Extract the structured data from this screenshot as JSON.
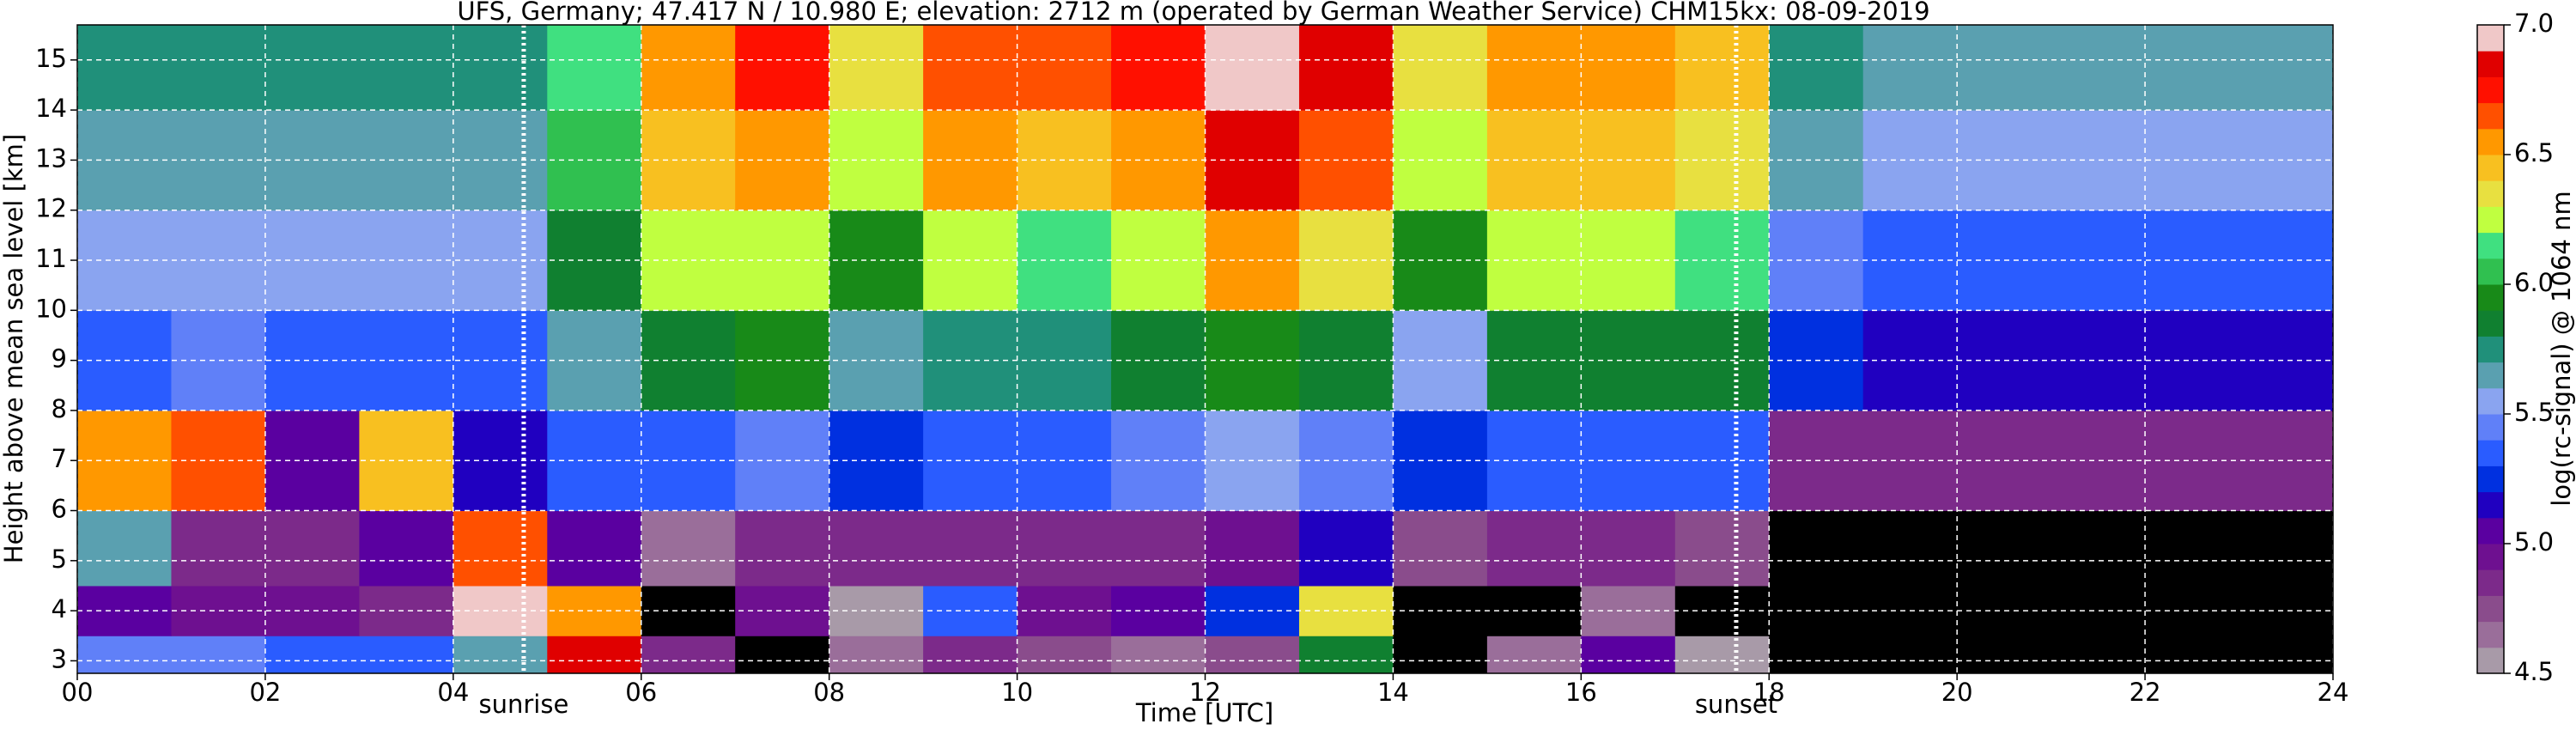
{
  "chart_data": {
    "type": "heatmap",
    "title": "UFS, Germany; 47.417 N / 10.980 E; elevation: 2712 m  (operated by German Weather Service)     CHM15kx: 08-09-2019",
    "xlabel": "Time [UTC]",
    "ylabel": "Height above mean sea level [km]",
    "colorbar_label": "log(rc-signal) @ 1064 nm",
    "xlim": [
      0,
      24
    ],
    "ylim": [
      2.75,
      15.7
    ],
    "xticks": [
      {
        "value": 0,
        "label": "00"
      },
      {
        "value": 2,
        "label": "02"
      },
      {
        "value": 4,
        "label": "04"
      },
      {
        "value": 6,
        "label": "06"
      },
      {
        "value": 8,
        "label": "08"
      },
      10,
      12,
      14,
      16,
      18,
      20,
      22,
      24
    ],
    "yticks": [
      3,
      4,
      5,
      6,
      7,
      8,
      9,
      10,
      11,
      12,
      13,
      14,
      15
    ],
    "grid": true,
    "xbins": [
      0,
      1,
      2,
      3,
      4,
      5,
      6,
      7,
      8,
      9,
      10,
      11,
      12,
      13,
      14,
      15,
      16,
      17,
      18,
      19,
      20,
      21,
      22,
      23,
      24
    ],
    "ybins": [
      2.75,
      3.5,
      4.5,
      6,
      8,
      10,
      12,
      14,
      15.7
    ],
    "z": [
      [
        5.4,
        5.4,
        5.3,
        5.3,
        5.6,
        6.8,
        4.8,
        4.4,
        4.6,
        4.8,
        4.7,
        4.6,
        4.7,
        5.8,
        4.4,
        4.6,
        5.0,
        4.5,
        4.3,
        4.3,
        4.3,
        4.3,
        4.3,
        4.3
      ],
      [
        5.0,
        4.9,
        4.9,
        4.8,
        6.9,
        6.5,
        4.4,
        4.9,
        4.5,
        5.3,
        4.9,
        5.0,
        5.2,
        6.3,
        4.4,
        4.4,
        4.6,
        4.4,
        4.3,
        4.3,
        4.3,
        4.3,
        4.3,
        4.3
      ],
      [
        5.6,
        4.8,
        4.8,
        5.0,
        6.6,
        5.0,
        4.6,
        4.8,
        4.8,
        4.8,
        4.8,
        4.8,
        4.9,
        5.1,
        4.7,
        4.8,
        4.8,
        4.7,
        4.4,
        4.4,
        4.4,
        4.4,
        4.4,
        4.4
      ],
      [
        6.5,
        6.6,
        5.0,
        6.4,
        5.1,
        5.3,
        5.3,
        5.4,
        5.2,
        5.3,
        5.3,
        5.4,
        5.5,
        5.4,
        5.2,
        5.3,
        5.3,
        5.3,
        4.8,
        4.8,
        4.8,
        4.8,
        4.8,
        4.8
      ],
      [
        5.3,
        5.4,
        5.3,
        5.3,
        5.3,
        5.6,
        5.8,
        5.9,
        5.6,
        5.7,
        5.7,
        5.8,
        5.9,
        5.8,
        5.5,
        5.8,
        5.8,
        5.8,
        5.2,
        5.1,
        5.1,
        5.1,
        5.1,
        5.1
      ],
      [
        5.5,
        5.5,
        5.5,
        5.5,
        5.5,
        5.8,
        6.2,
        6.2,
        5.9,
        6.2,
        6.1,
        6.2,
        6.5,
        6.3,
        5.9,
        6.2,
        6.2,
        6.1,
        5.4,
        5.3,
        5.3,
        5.3,
        5.3,
        5.3
      ],
      [
        5.6,
        5.6,
        5.6,
        5.6,
        5.6,
        6.0,
        6.4,
        6.5,
        6.2,
        6.5,
        6.4,
        6.5,
        6.8,
        6.6,
        6.2,
        6.4,
        6.4,
        6.3,
        5.6,
        5.5,
        5.5,
        5.5,
        5.5,
        5.5
      ],
      [
        5.7,
        5.7,
        5.7,
        5.7,
        5.7,
        6.1,
        6.5,
        6.7,
        6.3,
        6.6,
        6.6,
        6.7,
        6.9,
        6.8,
        6.3,
        6.5,
        6.5,
        6.4,
        5.7,
        5.6,
        5.6,
        5.6,
        5.6,
        5.6
      ]
    ],
    "zlim": [
      4.5,
      7.0
    ],
    "zticks": [
      {
        "value": 4.5,
        "label": "4.5"
      },
      {
        "value": 5,
        "label": "5.0"
      },
      {
        "value": 5.5,
        "label": "5.5"
      },
      {
        "value": 6,
        "label": "6.0"
      },
      {
        "value": 6.5,
        "label": "6.5"
      },
      {
        "value": 7,
        "label": "7.0"
      }
    ],
    "under_color": "#000000",
    "colors": [
      "#a89aa8",
      "#9a6e9a",
      "#8a4c8c",
      "#7c2a8a",
      "#6e1090",
      "#5a00a0",
      "#2000c0",
      "#0030e0",
      "#2a5cff",
      "#6080f8",
      "#8aa4f0",
      "#5aa0b0",
      "#20907a",
      "#108030",
      "#188a18",
      "#30c050",
      "#40e080",
      "#c0ff40",
      "#e8e040",
      "#f8c020",
      "#ff9800",
      "#ff5000",
      "#ff1000",
      "#e00000",
      "#f0c8c8"
    ],
    "annotations": [
      {
        "x": 4.75,
        "text": "sunrise"
      },
      {
        "x": 17.65,
        "text": "sunset"
      }
    ]
  }
}
